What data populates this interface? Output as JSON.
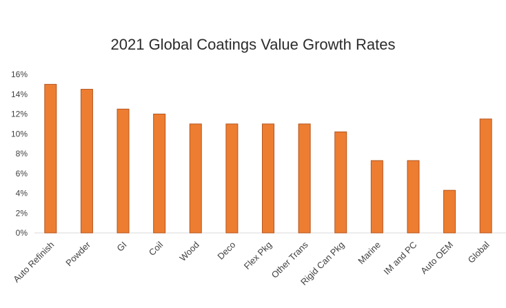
{
  "chart_data": {
    "type": "bar",
    "title": "2021 Global Coatings Value Growth Rates",
    "xlabel": "",
    "ylabel": "",
    "categories": [
      "Auto Refinish",
      "Powder",
      "GI",
      "Coil",
      "Wood",
      "Deco",
      "Flex Pkg",
      "Other Trans",
      "Rigid Can Pkg",
      "Marine",
      "IM and PC",
      "Auto OEM",
      "Global"
    ],
    "values": [
      15.0,
      14.5,
      12.5,
      12.0,
      11.0,
      11.0,
      11.0,
      11.0,
      10.2,
      7.3,
      7.3,
      4.3,
      11.5
    ],
    "ylim": [
      0,
      16
    ],
    "yticks": [
      0,
      2,
      4,
      6,
      8,
      10,
      12,
      14,
      16
    ],
    "ytick_labels": [
      "0%",
      "2%",
      "4%",
      "6%",
      "8%",
      "10%",
      "12%",
      "14%",
      "16%"
    ],
    "grid": false,
    "legend": "none",
    "bar_color": "#ED7D31",
    "bar_edge_color": "#B4541E",
    "axis_color": "#D9D9D9"
  }
}
